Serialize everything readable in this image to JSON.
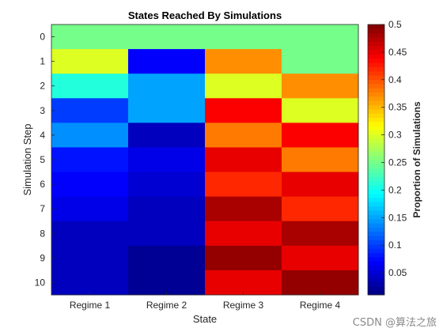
{
  "chart_data": {
    "type": "heatmap",
    "title": "States Reached By Simulations",
    "xlabel": "State",
    "ylabel": "Simulation Step",
    "colorbar_label": "Proportion of Simulations",
    "colormap": "jet",
    "clim": [
      0.01,
      0.5
    ],
    "x_categories": [
      "Regime 1",
      "Regime 2",
      "Regime 3",
      "Regime 4"
    ],
    "y_categories": [
      "0",
      "1",
      "2",
      "3",
      "4",
      "5",
      "6",
      "7",
      "8",
      "9",
      "10"
    ],
    "colorbar_ticks": [
      0.05,
      0.1,
      0.15,
      0.2,
      0.25,
      0.3,
      0.35,
      0.4,
      0.45,
      0.5
    ],
    "values": [
      [
        0.25,
        0.25,
        0.25,
        0.25
      ],
      [
        0.3,
        0.07,
        0.37,
        0.25
      ],
      [
        0.21,
        0.15,
        0.3,
        0.37
      ],
      [
        0.1,
        0.15,
        0.44,
        0.3
      ],
      [
        0.14,
        0.04,
        0.38,
        0.44
      ],
      [
        0.08,
        0.06,
        0.45,
        0.38
      ],
      [
        0.07,
        0.05,
        0.42,
        0.45
      ],
      [
        0.06,
        0.04,
        0.48,
        0.42
      ],
      [
        0.04,
        0.04,
        0.45,
        0.48
      ],
      [
        0.04,
        0.02,
        0.49,
        0.45
      ],
      [
        0.04,
        0.02,
        0.45,
        0.49
      ]
    ]
  },
  "watermark": "CSDN @算法之旅"
}
